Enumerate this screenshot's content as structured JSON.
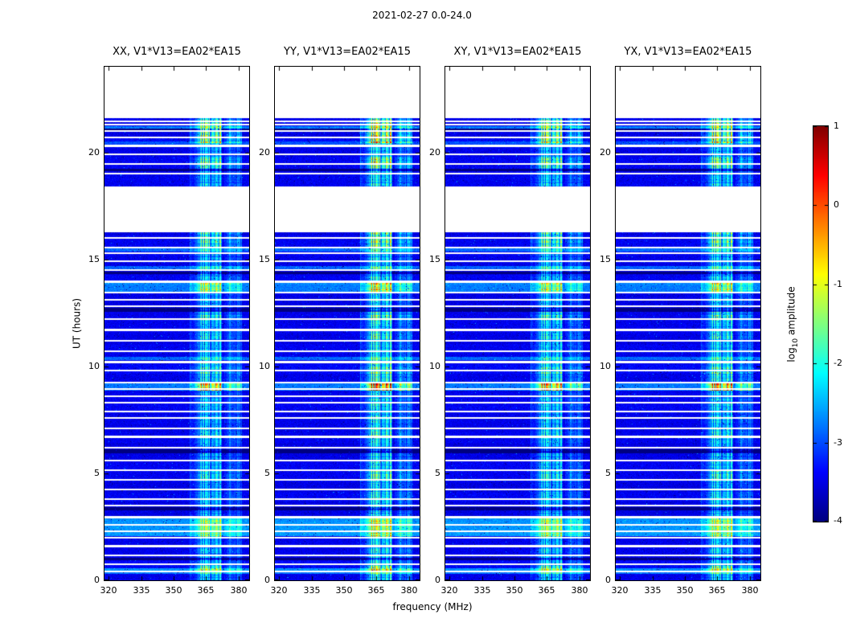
{
  "chart_data": {
    "type": "heatmap",
    "title": "2021-02-27 0.0-24.0",
    "xlabel": "frequency (MHz)",
    "ylabel": "UT (hours)",
    "panels": [
      {
        "label": "XX",
        "title": "XX, V1*V13=EA02*EA15"
      },
      {
        "label": "YY",
        "title": "YY, V1*V13=EA02*EA15"
      },
      {
        "label": "XY",
        "title": "XY, V1*V13=EA02*EA15"
      },
      {
        "label": "YX",
        "title": "YX, V1*V13=EA02*EA15"
      }
    ],
    "x_range": [
      318,
      385
    ],
    "y_range": [
      0,
      24
    ],
    "x_ticks": [
      320,
      335,
      350,
      365,
      380
    ],
    "y_ticks": [
      0,
      5,
      10,
      15,
      20
    ],
    "colorbar": {
      "label_parts": {
        "prefix": "log",
        "sub": "10",
        "suffix": " amplitude"
      },
      "ticks": [
        1,
        0,
        -1,
        -2,
        -3,
        -4
      ],
      "range": [
        -4,
        1
      ],
      "colormap": "jet"
    },
    "background_level": -3.45,
    "noise_sigma": 0.25,
    "panel_rfi_gain": [
      0.95,
      1.18,
      1.0,
      1.05
    ],
    "rfi_bands": [
      {
        "freq": [
          360.5,
          372.5
        ],
        "strength": 1.0
      },
      {
        "freq": [
          373.5,
          381.5
        ],
        "strength": 0.5
      },
      {
        "freq": [
          357.5,
          360.5
        ],
        "strength": 0.35
      }
    ],
    "no_data_ut_ranges": [
      [
        21.58,
        24.05
      ],
      [
        16.25,
        18.42
      ]
    ],
    "no_data_ut_lines": [
      0.4,
      0.75,
      1.15,
      1.6,
      2.0,
      2.3,
      2.6,
      2.95,
      3.5,
      3.8,
      4.25,
      4.7,
      5.15,
      5.6,
      6.2,
      6.7,
      7.1,
      7.6,
      7.9,
      8.3,
      8.6,
      8.95,
      9.25,
      9.8,
      10.2,
      10.7,
      11.2,
      11.7,
      12.2,
      12.8,
      13.1,
      13.45,
      13.95,
      14.5,
      14.9,
      15.3,
      15.55,
      16.0,
      19.0,
      19.45,
      19.9,
      20.3,
      20.7,
      21.0,
      21.3,
      21.45
    ],
    "dark_ut_rows": [
      [
        12.55,
        12.75
      ],
      [
        5.95,
        6.12
      ],
      [
        3.25,
        3.4
      ],
      [
        19.12,
        19.22
      ],
      [
        0.95,
        1.05
      ],
      [
        14.3,
        14.42
      ],
      [
        21.03,
        21.1
      ]
    ],
    "bright_rows": [
      {
        "ut": [
          2.05,
          2.95
        ],
        "boost": 0.85
      },
      {
        "ut": [
          13.5,
          13.9
        ],
        "boost": 0.7
      },
      {
        "ut": [
          8.85,
          9.2
        ],
        "boost": 0.7
      },
      {
        "ut": [
          0.3,
          0.55
        ],
        "boost": 0.7
      },
      {
        "ut": [
          15.35,
          15.5
        ],
        "boost": 0.55
      },
      {
        "ut": [
          10.3,
          10.45
        ],
        "boost": 0.6
      },
      {
        "ut": [
          14.55,
          14.68
        ],
        "boost": 0.6
      },
      {
        "ut": [
          20.35,
          20.5
        ],
        "boost": 0.4
      },
      {
        "ut": [
          21.12,
          21.22
        ],
        "boost": 0.7
      }
    ],
    "hot_rfi_rows": [
      {
        "ut": [
          8.85,
          9.25
        ],
        "gain": 2.1
      },
      {
        "ut": [
          20.45,
          21.55
        ],
        "gain": 1.8
      },
      {
        "ut": [
          13.4,
          14.0
        ],
        "gain": 1.5
      },
      {
        "ut": [
          19.25,
          19.8
        ],
        "gain": 1.5
      },
      {
        "ut": [
          15.5,
          16.25
        ],
        "gain": 1.5
      },
      {
        "ut": [
          12.15,
          12.55
        ],
        "gain": 1.4
      },
      {
        "ut": [
          9.3,
          10.15
        ],
        "gain": 1.35
      },
      {
        "ut": [
          2.0,
          3.0
        ],
        "gain": 1.3
      },
      {
        "ut": [
          0.35,
          0.75
        ],
        "gain": 1.4
      },
      {
        "ut": [
          6.6,
          7.15
        ],
        "gain": 1.3
      },
      {
        "ut": [
          4.6,
          5.2
        ],
        "gain": 1.25
      },
      {
        "ut": [
          11.2,
          11.75
        ],
        "gain": 1.25
      }
    ]
  }
}
